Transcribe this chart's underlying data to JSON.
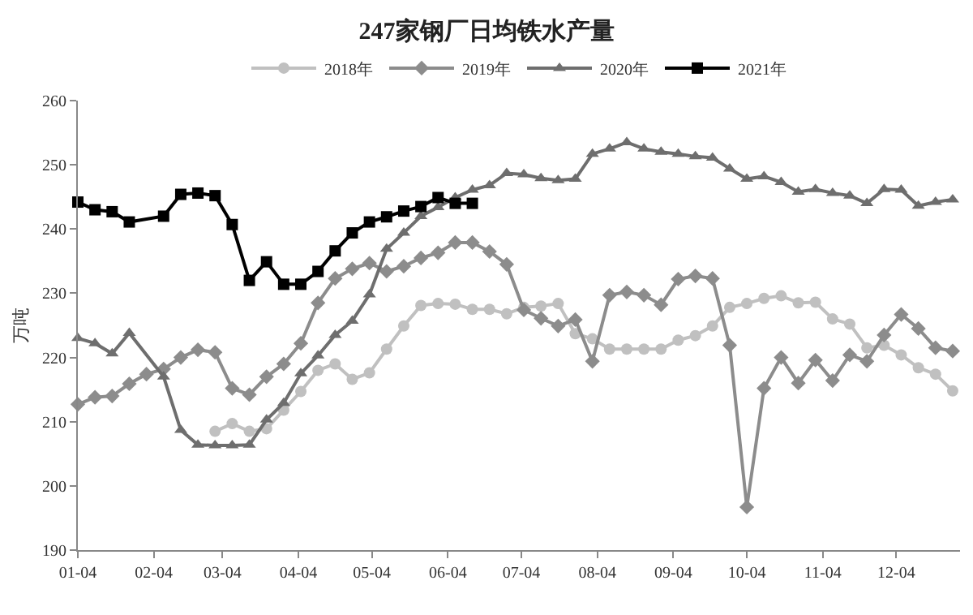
{
  "chart_data": {
    "type": "line",
    "title": "247家钢厂日均铁水产量",
    "ylabel": "万吨",
    "legend": "top",
    "grid": false,
    "line_style": "solid",
    "xlim": [
      "--01-04",
      "--12-30"
    ],
    "xticks": [
      {
        "value": "--01-04",
        "label": "01-04"
      },
      {
        "value": "--02-04",
        "label": "02-04"
      },
      {
        "value": "--03-04",
        "label": "03-04"
      },
      {
        "value": "--04-04",
        "label": "04-04"
      },
      {
        "value": "--05-04",
        "label": "05-04"
      },
      {
        "value": "--06-04",
        "label": "06-04"
      },
      {
        "value": "--07-04",
        "label": "07-04"
      },
      {
        "value": "--08-04",
        "label": "08-04"
      },
      {
        "value": "--09-04",
        "label": "09-04"
      },
      {
        "value": "--10-04",
        "label": "10-04"
      },
      {
        "value": "--11-04",
        "label": "11-04"
      },
      {
        "value": "--12-04",
        "label": "12-04"
      }
    ],
    "ylim": [
      190,
      260
    ],
    "yticks": [
      190,
      200,
      210,
      220,
      230,
      240,
      250,
      260
    ],
    "series": [
      {
        "name": "2018年",
        "color": "#c0c0c0",
        "marker": "circle",
        "x": [
          "--03-01",
          "--03-08",
          "--03-15",
          "--03-22",
          "--03-29",
          "--04-05",
          "--04-12",
          "--04-19",
          "--04-26",
          "--05-03",
          "--05-10",
          "--05-17",
          "--05-24",
          "--05-31",
          "--06-07",
          "--06-14",
          "--06-21",
          "--06-28",
          "--07-05",
          "--07-12",
          "--07-19",
          "--07-26",
          "--08-02",
          "--08-09",
          "--08-16",
          "--08-23",
          "--08-30",
          "--09-06",
          "--09-13",
          "--09-20",
          "--09-27",
          "--10-04",
          "--10-11",
          "--10-18",
          "--10-25",
          "--11-01",
          "--11-08",
          "--11-15",
          "--11-22",
          "--11-29",
          "--12-06",
          "--12-13",
          "--12-20",
          "--12-27"
        ],
        "values": [
          208.5,
          209.7,
          208.5,
          208.9,
          211.8,
          214.7,
          218.0,
          219.0,
          216.6,
          217.6,
          221.3,
          224.9,
          228.1,
          228.4,
          228.3,
          227.5,
          227.5,
          226.8,
          227.8,
          228.0,
          228.4,
          223.7,
          222.9,
          221.3,
          221.3,
          221.3,
          221.3,
          222.7,
          223.4,
          224.9,
          227.8,
          228.4,
          229.2,
          229.6,
          228.5,
          228.6,
          226.0,
          225.2,
          221.5,
          221.9,
          220.4,
          218.4,
          217.4,
          214.8
        ]
      },
      {
        "name": "2019年",
        "color": "#8c8c8c",
        "marker": "diamond",
        "x": [
          "--01-04",
          "--01-11",
          "--01-18",
          "--01-25",
          "--02-01",
          "--02-08",
          "--02-15",
          "--02-22",
          "--03-01",
          "--03-08",
          "--03-15",
          "--03-22",
          "--03-29",
          "--04-05",
          "--04-12",
          "--04-19",
          "--04-26",
          "--05-03",
          "--05-10",
          "--05-17",
          "--05-24",
          "--05-31",
          "--06-07",
          "--06-14",
          "--06-21",
          "--06-28",
          "--07-05",
          "--07-12",
          "--07-19",
          "--07-26",
          "--08-02",
          "--08-09",
          "--08-16",
          "--08-23",
          "--08-30",
          "--09-06",
          "--09-13",
          "--09-20",
          "--09-27",
          "--10-04",
          "--10-11",
          "--10-18",
          "--10-25",
          "--11-01",
          "--11-08",
          "--11-15",
          "--11-22",
          "--11-29",
          "--12-06",
          "--12-13",
          "--12-20",
          "--12-27"
        ],
        "values": [
          212.7,
          213.8,
          214.0,
          215.9,
          217.4,
          218.2,
          220.0,
          221.2,
          220.8,
          215.2,
          214.2,
          217.0,
          219.0,
          222.2,
          228.5,
          232.3,
          233.8,
          234.7,
          233.4,
          234.2,
          235.5,
          236.3,
          237.9,
          237.9,
          236.5,
          234.5,
          227.4,
          226.1,
          224.9,
          225.9,
          219.4,
          229.7,
          230.2,
          229.7,
          228.2,
          232.2,
          232.7,
          232.3,
          221.9,
          196.7,
          215.2,
          220.0,
          216.0,
          219.6,
          216.4,
          220.4,
          219.4,
          223.5,
          226.7,
          224.5,
          221.5,
          221.0
        ]
      },
      {
        "name": "2020年",
        "color": "#6e6e6e",
        "marker": "triangle",
        "x": [
          "--01-04",
          "--01-11",
          "--01-18",
          "--01-25",
          "--02-08",
          "--02-15",
          "--02-22",
          "--03-01",
          "--03-08",
          "--03-15",
          "--03-22",
          "--03-29",
          "--04-05",
          "--04-12",
          "--04-19",
          "--04-26",
          "--05-03",
          "--05-10",
          "--05-17",
          "--05-24",
          "--05-31",
          "--06-07",
          "--06-14",
          "--06-21",
          "--06-28",
          "--07-05",
          "--07-12",
          "--07-19",
          "--07-26",
          "--08-02",
          "--08-09",
          "--08-16",
          "--08-23",
          "--08-30",
          "--09-06",
          "--09-13",
          "--09-20",
          "--09-27",
          "--10-04",
          "--10-11",
          "--10-18",
          "--10-25",
          "--11-01",
          "--11-08",
          "--11-15",
          "--11-22",
          "--11-29",
          "--12-06",
          "--12-13",
          "--12-20",
          "--12-27"
        ],
        "values": [
          223.0,
          222.2,
          220.6,
          223.8,
          217.0,
          208.7,
          206.4,
          206.3,
          206.3,
          206.4,
          210.3,
          212.9,
          217.5,
          220.3,
          223.5,
          225.7,
          229.8,
          236.9,
          239.4,
          242.0,
          243.4,
          244.9,
          246.1,
          246.8,
          248.7,
          248.5,
          247.9,
          247.6,
          247.8,
          251.7,
          252.5,
          253.5,
          252.5,
          252.0,
          251.7,
          251.3,
          251.1,
          249.4,
          247.8,
          248.2,
          247.3,
          245.8,
          246.2,
          245.6,
          245.2,
          244.0,
          246.2,
          246.1,
          243.6,
          244.2,
          244.6
        ]
      },
      {
        "name": "2021年",
        "color": "#000000",
        "marker": "square",
        "x": [
          "--01-04",
          "--01-11",
          "--01-18",
          "--01-25",
          "--02-08",
          "--02-15",
          "--02-22",
          "--03-01",
          "--03-08",
          "--03-15",
          "--03-22",
          "--03-29",
          "--04-05",
          "--04-12",
          "--04-19",
          "--04-26",
          "--05-03",
          "--05-10",
          "--05-17",
          "--05-24",
          "--05-31",
          "--06-07",
          "--06-14"
        ],
        "values": [
          244.2,
          243.0,
          242.7,
          241.1,
          242.0,
          245.4,
          245.6,
          245.2,
          240.7,
          232.0,
          234.9,
          231.4,
          231.4,
          233.4,
          236.6,
          239.4,
          241.1,
          241.9,
          242.8,
          243.5,
          244.9,
          244.0,
          244.0
        ]
      }
    ]
  }
}
